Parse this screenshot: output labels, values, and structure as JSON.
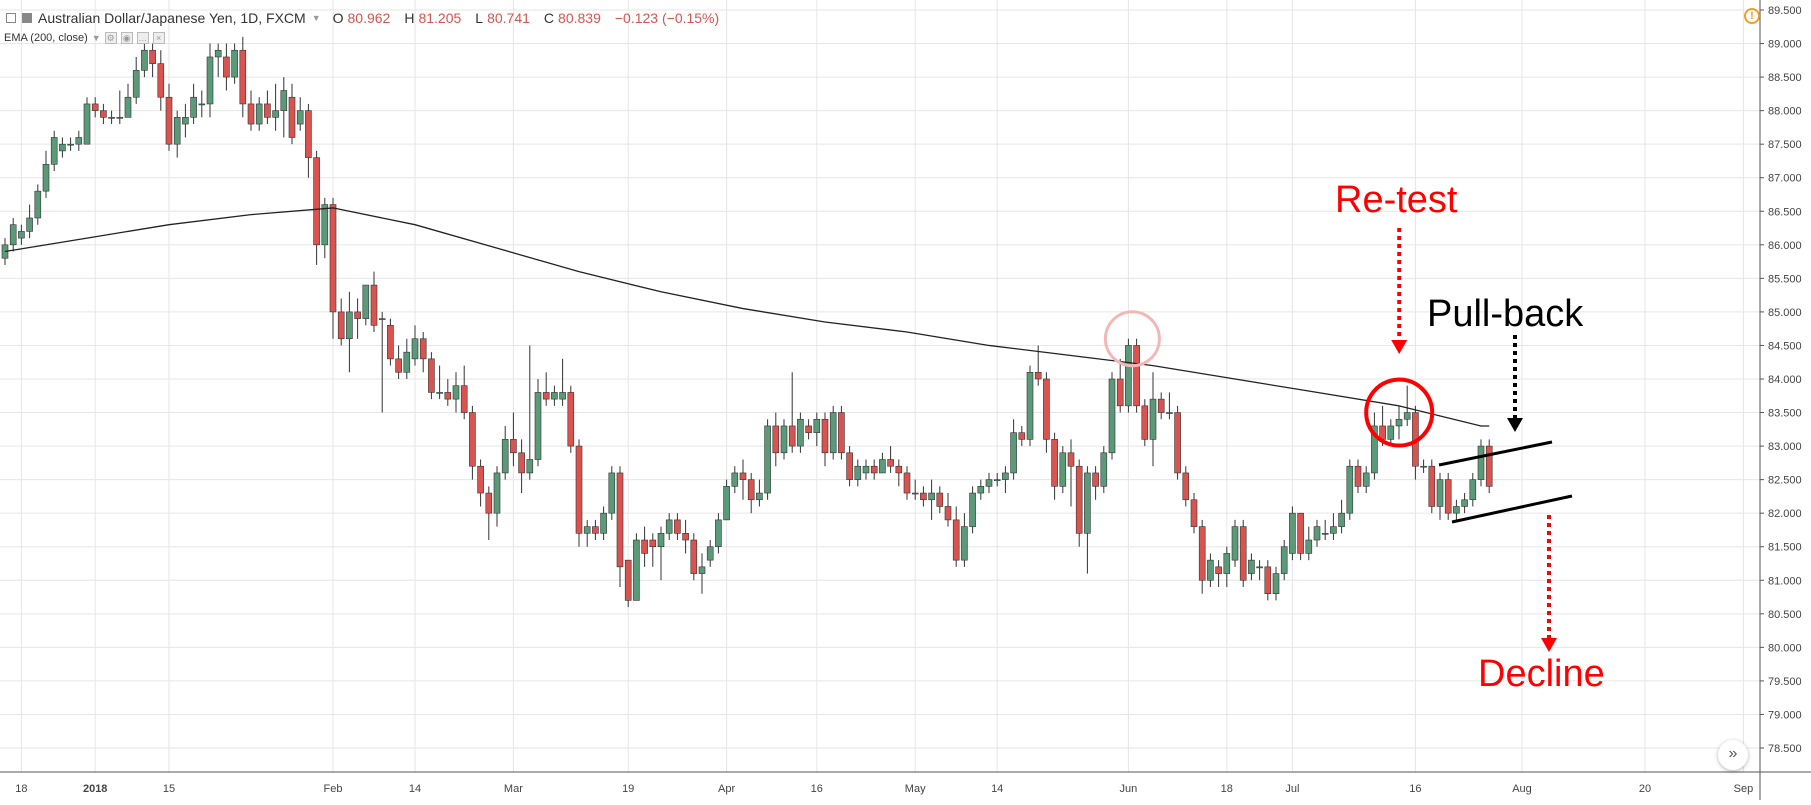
{
  "legend": {
    "symbol": "Australian Dollar/Japanese Yen, 1D, FXCM",
    "open_label": "O",
    "open": "80.962",
    "high_label": "H",
    "high": "81.205",
    "low_label": "L",
    "low": "80.741",
    "close_label": "C",
    "close": "80.839",
    "change": "−0.123 (−0.15%)"
  },
  "indicator": {
    "label": "EMA (200, close)"
  },
  "colors": {
    "up": "#5b9a78",
    "down": "#d9534f",
    "wick": "#333333",
    "grid": "#e6e6e6",
    "ema": "#222222",
    "annotation_red": "#ff0000",
    "annotation_black": "#000000"
  },
  "icons": {
    "alert": "alert-icon",
    "scroll": "scroll-to-end-icon"
  },
  "chart_data": {
    "type": "candlestick",
    "ylim": [
      78.5,
      89.5
    ],
    "yticks": [
      "78.500",
      "79.000",
      "79.500",
      "80.000",
      "80.500",
      "81.000",
      "81.500",
      "82.000",
      "82.500",
      "83.000",
      "83.500",
      "84.000",
      "84.500",
      "85.000",
      "85.500",
      "86.000",
      "86.500",
      "87.000",
      "87.500",
      "88.000",
      "88.500",
      "89.000",
      "89.500"
    ],
    "x_count": 182,
    "x_ticks": [
      {
        "index": 2,
        "label": "18"
      },
      {
        "index": 11,
        "label": "2018"
      },
      {
        "index": 20,
        "label": "15"
      },
      {
        "index": 40,
        "label": "Feb"
      },
      {
        "index": 50,
        "label": "14"
      },
      {
        "index": 62,
        "label": "Mar"
      },
      {
        "index": 76,
        "label": "19"
      },
      {
        "index": 88,
        "label": "Apr"
      },
      {
        "index": 99,
        "label": "16"
      },
      {
        "index": 111,
        "label": "May"
      },
      {
        "index": 121,
        "label": "14"
      },
      {
        "index": 137,
        "label": "Jun"
      },
      {
        "index": 149,
        "label": "18"
      },
      {
        "index": 157,
        "label": "Jul"
      },
      {
        "index": 172,
        "label": "16"
      },
      {
        "index": 185,
        "label": "Aug"
      },
      {
        "index": 200,
        "label": "20"
      },
      {
        "index": 212,
        "label": "Sep"
      }
    ],
    "candles": [
      [
        0,
        85.8,
        86.0,
        85.7,
        86.1
      ],
      [
        1,
        86.0,
        86.3,
        85.9,
        86.4
      ],
      [
        2,
        86.1,
        86.2,
        86.0,
        86.3
      ],
      [
        3,
        86.2,
        86.4,
        86.1,
        86.6
      ],
      [
        4,
        86.4,
        86.8,
        86.3,
        86.9
      ],
      [
        5,
        86.8,
        87.2,
        86.7,
        87.4
      ],
      [
        6,
        87.2,
        87.6,
        87.1,
        87.7
      ],
      [
        7,
        87.4,
        87.5,
        87.3,
        87.6
      ],
      [
        8,
        87.5,
        87.5,
        87.4,
        87.6
      ],
      [
        9,
        87.5,
        87.6,
        87.4,
        87.7
      ],
      [
        10,
        87.5,
        88.1,
        87.5,
        88.2
      ],
      [
        11,
        88.1,
        88.0,
        87.9,
        88.2
      ],
      [
        12,
        88.0,
        87.9,
        87.8,
        88.1
      ],
      [
        13,
        87.9,
        87.9,
        87.8,
        88.0
      ],
      [
        14,
        87.9,
        87.9,
        87.8,
        88.3
      ],
      [
        15,
        87.9,
        88.2,
        87.9,
        88.4
      ],
      [
        16,
        88.2,
        88.6,
        88.1,
        88.8
      ],
      [
        17,
        88.6,
        88.9,
        88.5,
        89.0
      ],
      [
        18,
        88.9,
        88.7,
        88.5,
        89.0
      ],
      [
        19,
        88.7,
        88.2,
        88.0,
        88.9
      ],
      [
        20,
        88.2,
        87.5,
        87.4,
        88.4
      ],
      [
        21,
        87.5,
        87.9,
        87.3,
        88.0
      ],
      [
        22,
        87.8,
        87.9,
        87.6,
        88.1
      ],
      [
        23,
        87.9,
        88.2,
        87.8,
        88.4
      ],
      [
        24,
        88.1,
        88.1,
        87.9,
        88.3
      ],
      [
        25,
        88.1,
        88.8,
        87.9,
        89.0
      ],
      [
        26,
        88.8,
        88.9,
        88.5,
        89.0
      ],
      [
        27,
        88.8,
        88.5,
        88.3,
        89.0
      ],
      [
        28,
        88.5,
        88.9,
        88.4,
        89.0
      ],
      [
        29,
        88.9,
        88.1,
        87.9,
        89.1
      ],
      [
        30,
        88.1,
        87.8,
        87.7,
        88.3
      ],
      [
        31,
        87.8,
        88.1,
        87.7,
        88.2
      ],
      [
        32,
        88.1,
        87.9,
        87.8,
        88.3
      ],
      [
        33,
        87.9,
        88.0,
        87.7,
        88.4
      ],
      [
        34,
        88.0,
        88.3,
        87.6,
        88.5
      ],
      [
        35,
        88.2,
        87.6,
        87.5,
        88.4
      ],
      [
        36,
        87.8,
        88.0,
        87.7,
        88.2
      ],
      [
        37,
        88.0,
        87.3,
        87.0,
        88.1
      ],
      [
        38,
        87.3,
        86.0,
        85.7,
        87.4
      ],
      [
        39,
        86.0,
        86.6,
        85.8,
        86.7
      ],
      [
        40,
        86.6,
        85.0,
        84.6,
        86.7
      ],
      [
        41,
        85.0,
        84.6,
        84.5,
        85.2
      ],
      [
        42,
        84.6,
        85.0,
        84.1,
        85.3
      ],
      [
        43,
        85.0,
        84.9,
        84.6,
        85.2
      ],
      [
        44,
        84.9,
        85.4,
        84.8,
        85.4
      ],
      [
        45,
        85.4,
        84.8,
        84.7,
        85.6
      ],
      [
        46,
        84.9,
        84.9,
        83.5,
        85.0
      ],
      [
        47,
        84.8,
        84.3,
        84.2,
        84.9
      ],
      [
        48,
        84.3,
        84.1,
        84.0,
        84.5
      ],
      [
        49,
        84.1,
        84.4,
        84.0,
        84.6
      ],
      [
        50,
        84.3,
        84.6,
        84.2,
        84.8
      ],
      [
        51,
        84.6,
        84.3,
        84.1,
        84.7
      ],
      [
        52,
        84.3,
        83.8,
        83.7,
        84.4
      ],
      [
        53,
        83.8,
        83.8,
        83.7,
        84.2
      ],
      [
        54,
        83.8,
        83.7,
        83.6,
        84.0
      ],
      [
        55,
        83.7,
        83.9,
        83.5,
        84.1
      ],
      [
        56,
        83.9,
        83.5,
        83.4,
        84.2
      ],
      [
        57,
        83.5,
        82.7,
        82.5,
        83.6
      ],
      [
        58,
        82.7,
        82.3,
        82.1,
        82.8
      ],
      [
        59,
        82.3,
        82.0,
        81.6,
        82.4
      ],
      [
        60,
        82.0,
        82.6,
        81.8,
        82.7
      ],
      [
        61,
        82.6,
        83.1,
        82.5,
        83.3
      ],
      [
        62,
        83.1,
        82.9,
        82.7,
        83.5
      ],
      [
        63,
        82.9,
        82.6,
        82.3,
        83.1
      ],
      [
        64,
        82.6,
        82.8,
        82.5,
        84.5
      ],
      [
        65,
        82.8,
        83.8,
        82.7,
        84.0
      ],
      [
        66,
        83.8,
        83.7,
        83.6,
        84.1
      ],
      [
        67,
        83.7,
        83.8,
        83.6,
        83.9
      ],
      [
        68,
        83.7,
        83.8,
        83.6,
        84.3
      ],
      [
        69,
        83.8,
        83.0,
        82.9,
        83.9
      ],
      [
        70,
        83.0,
        81.7,
        81.5,
        83.1
      ],
      [
        71,
        81.7,
        81.8,
        81.5,
        81.9
      ],
      [
        72,
        81.8,
        81.7,
        81.6,
        81.9
      ],
      [
        73,
        81.7,
        82.0,
        81.6,
        82.1
      ],
      [
        74,
        82.0,
        82.6,
        81.9,
        82.7
      ],
      [
        75,
        82.6,
        81.2,
        80.9,
        82.7
      ],
      [
        76,
        81.3,
        80.7,
        80.6,
        81.3
      ],
      [
        77,
        80.7,
        81.6,
        80.7,
        81.7
      ],
      [
        78,
        81.6,
        81.4,
        81.2,
        81.8
      ],
      [
        79,
        81.6,
        81.5,
        81.2,
        81.7
      ],
      [
        80,
        81.5,
        81.7,
        81.0,
        81.8
      ],
      [
        81,
        81.7,
        81.9,
        81.6,
        82.0
      ],
      [
        82,
        81.9,
        81.7,
        81.6,
        82.0
      ],
      [
        83,
        81.7,
        81.6,
        81.4,
        81.9
      ],
      [
        84,
        81.6,
        81.1,
        81.0,
        81.7
      ],
      [
        85,
        81.1,
        81.2,
        80.8,
        81.4
      ],
      [
        86,
        81.3,
        81.5,
        81.2,
        81.6
      ],
      [
        87,
        81.5,
        81.9,
        81.4,
        82.0
      ],
      [
        88,
        81.9,
        82.4,
        81.9,
        82.5
      ],
      [
        89,
        82.4,
        82.6,
        82.3,
        82.7
      ],
      [
        90,
        82.6,
        82.5,
        82.2,
        82.8
      ],
      [
        91,
        82.5,
        82.2,
        82.0,
        82.6
      ],
      [
        92,
        82.2,
        82.3,
        82.1,
        82.5
      ],
      [
        93,
        82.3,
        83.3,
        82.2,
        83.4
      ],
      [
        94,
        83.3,
        82.9,
        82.7,
        83.5
      ],
      [
        95,
        82.9,
        83.3,
        82.8,
        83.4
      ],
      [
        96,
        83.3,
        83.0,
        82.9,
        84.1
      ],
      [
        97,
        83.0,
        83.4,
        82.9,
        83.5
      ],
      [
        98,
        83.3,
        83.2,
        83.1,
        83.4
      ],
      [
        99,
        83.2,
        83.4,
        83.0,
        83.5
      ],
      [
        100,
        83.4,
        82.9,
        82.7,
        83.5
      ],
      [
        101,
        82.9,
        83.5,
        82.8,
        83.6
      ],
      [
        102,
        83.5,
        82.9,
        82.8,
        83.6
      ],
      [
        103,
        82.9,
        82.5,
        82.4,
        83.0
      ],
      [
        104,
        82.5,
        82.7,
        82.4,
        82.8
      ],
      [
        105,
        82.6,
        82.7,
        82.5,
        82.8
      ],
      [
        106,
        82.7,
        82.6,
        82.5,
        82.8
      ],
      [
        107,
        82.6,
        82.8,
        82.6,
        82.9
      ],
      [
        108,
        82.8,
        82.7,
        82.6,
        83.0
      ],
      [
        109,
        82.7,
        82.6,
        82.4,
        82.8
      ],
      [
        110,
        82.6,
        82.3,
        82.2,
        82.7
      ],
      [
        111,
        82.3,
        82.3,
        82.2,
        82.5
      ],
      [
        112,
        82.3,
        82.2,
        82.1,
        82.4
      ],
      [
        113,
        82.2,
        82.3,
        81.9,
        82.5
      ],
      [
        114,
        82.3,
        82.1,
        82.0,
        82.4
      ],
      [
        115,
        82.1,
        81.9,
        81.8,
        82.3
      ],
      [
        116,
        81.9,
        81.3,
        81.2,
        82.1
      ],
      [
        117,
        81.3,
        81.8,
        81.2,
        82.0
      ],
      [
        118,
        81.8,
        82.3,
        81.7,
        82.4
      ],
      [
        119,
        82.3,
        82.4,
        82.2,
        82.5
      ],
      [
        120,
        82.4,
        82.5,
        82.3,
        82.6
      ],
      [
        121,
        82.5,
        82.5,
        82.4,
        82.6
      ],
      [
        122,
        82.5,
        82.6,
        82.3,
        82.7
      ],
      [
        123,
        82.6,
        83.2,
        82.5,
        83.4
      ],
      [
        124,
        83.2,
        83.1,
        83.0,
        83.3
      ],
      [
        125,
        83.1,
        84.1,
        83.0,
        84.2
      ],
      [
        126,
        84.1,
        84.0,
        83.9,
        84.5
      ],
      [
        127,
        84.0,
        83.1,
        82.9,
        84.1
      ],
      [
        128,
        83.1,
        82.4,
        82.2,
        83.2
      ],
      [
        129,
        82.4,
        82.9,
        82.3,
        83.0
      ],
      [
        130,
        82.9,
        82.7,
        82.1,
        83.1
      ],
      [
        131,
        82.7,
        81.7,
        81.5,
        82.8
      ],
      [
        132,
        81.7,
        82.6,
        81.1,
        82.7
      ],
      [
        133,
        82.6,
        82.4,
        82.2,
        82.7
      ],
      [
        134,
        82.4,
        82.9,
        82.3,
        83.0
      ],
      [
        135,
        82.9,
        84.0,
        82.8,
        84.1
      ],
      [
        136,
        84.0,
        83.6,
        83.5,
        84.3
      ],
      [
        137,
        83.6,
        84.5,
        83.5,
        84.6
      ],
      [
        138,
        84.5,
        83.6,
        83.5,
        84.6
      ],
      [
        139,
        83.6,
        83.1,
        83.0,
        83.7
      ],
      [
        140,
        83.1,
        83.7,
        82.7,
        84.1
      ],
      [
        141,
        83.7,
        83.5,
        83.4,
        83.8
      ],
      [
        142,
        83.5,
        83.5,
        83.4,
        83.8
      ],
      [
        143,
        83.5,
        82.6,
        82.5,
        83.6
      ],
      [
        144,
        82.6,
        82.2,
        82.1,
        82.7
      ],
      [
        145,
        82.2,
        81.8,
        81.7,
        82.3
      ],
      [
        146,
        81.8,
        81.0,
        80.8,
        81.9
      ],
      [
        147,
        81.0,
        81.3,
        80.9,
        81.4
      ],
      [
        148,
        81.2,
        81.1,
        80.9,
        81.3
      ],
      [
        149,
        81.1,
        81.4,
        80.9,
        81.5
      ],
      [
        150,
        81.3,
        81.8,
        81.2,
        81.9
      ],
      [
        151,
        81.8,
        81.0,
        80.9,
        81.9
      ],
      [
        152,
        81.1,
        81.3,
        81.0,
        81.4
      ],
      [
        153,
        81.2,
        81.2,
        81.0,
        81.3
      ],
      [
        154,
        81.2,
        80.8,
        80.7,
        81.3
      ],
      [
        155,
        80.8,
        81.1,
        80.7,
        81.2
      ],
      [
        156,
        81.1,
        81.5,
        81.0,
        81.6
      ],
      [
        157,
        81.4,
        82.0,
        81.3,
        82.1
      ],
      [
        158,
        82.0,
        81.4,
        81.3,
        82.0
      ],
      [
        159,
        81.4,
        81.6,
        81.3,
        81.8
      ],
      [
        160,
        81.6,
        81.8,
        81.5,
        81.9
      ],
      [
        161,
        81.7,
        81.7,
        81.6,
        81.9
      ],
      [
        162,
        81.7,
        81.8,
        81.6,
        82.0
      ],
      [
        163,
        81.8,
        82.0,
        81.7,
        82.2
      ],
      [
        164,
        82.0,
        82.7,
        81.9,
        82.8
      ],
      [
        165,
        82.7,
        82.4,
        82.3,
        82.8
      ],
      [
        166,
        82.4,
        82.6,
        82.3,
        82.7
      ],
      [
        167,
        82.6,
        83.3,
        82.5,
        83.5
      ],
      [
        168,
        83.3,
        83.1,
        83.0,
        83.6
      ],
      [
        169,
        83.1,
        83.3,
        83.0,
        83.4
      ],
      [
        170,
        83.3,
        83.4,
        83.1,
        83.6
      ],
      [
        171,
        83.4,
        83.5,
        83.3,
        83.9
      ],
      [
        172,
        83.5,
        82.7,
        82.5,
        83.6
      ],
      [
        173,
        82.7,
        82.7,
        82.6,
        82.8
      ],
      [
        174,
        82.7,
        82.1,
        82.0,
        82.8
      ],
      [
        175,
        82.1,
        82.5,
        81.9,
        82.6
      ],
      [
        176,
        82.5,
        82.0,
        81.9,
        82.6
      ],
      [
        177,
        82.0,
        82.1,
        81.9,
        82.2
      ],
      [
        178,
        82.1,
        82.2,
        82.0,
        82.3
      ],
      [
        179,
        82.2,
        82.5,
        82.1,
        82.6
      ],
      [
        180,
        82.5,
        83.0,
        82.4,
        83.1
      ],
      [
        181,
        83.0,
        82.4,
        82.3,
        83.1
      ]
    ],
    "ema": [
      [
        0,
        85.9
      ],
      [
        10,
        86.1
      ],
      [
        20,
        86.3
      ],
      [
        30,
        86.45
      ],
      [
        40,
        86.55
      ],
      [
        50,
        86.3
      ],
      [
        60,
        85.95
      ],
      [
        70,
        85.6
      ],
      [
        80,
        85.3
      ],
      [
        90,
        85.05
      ],
      [
        100,
        84.85
      ],
      [
        110,
        84.7
      ],
      [
        120,
        84.5
      ],
      [
        130,
        84.35
      ],
      [
        140,
        84.2
      ],
      [
        150,
        84.0
      ],
      [
        160,
        83.8
      ],
      [
        170,
        83.6
      ],
      [
        180,
        83.3
      ],
      [
        181,
        83.3
      ]
    ],
    "annotations": [
      {
        "kind": "text",
        "label": "Re-test",
        "color": "red"
      },
      {
        "kind": "text",
        "label": "Pull-back",
        "color": "black"
      },
      {
        "kind": "text",
        "label": "Decline",
        "color": "red"
      }
    ]
  }
}
